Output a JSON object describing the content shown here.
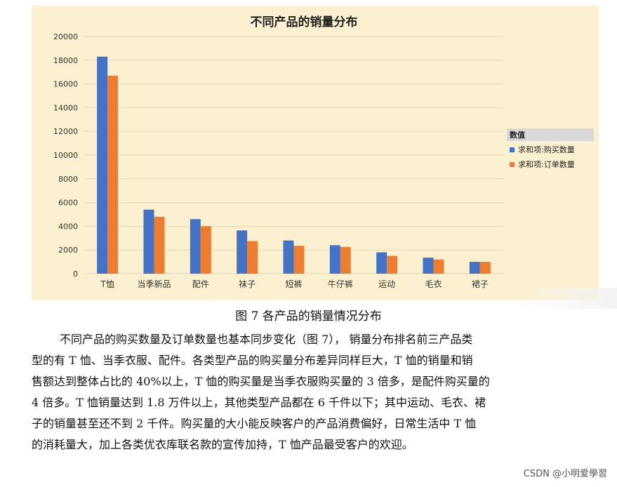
{
  "chart_data": {
    "type": "bar",
    "title": "不同产品的销量分布",
    "categories": [
      "T恤",
      "当季新品",
      "配件",
      "袜子",
      "短裤",
      "牛仔裤",
      "运动",
      "毛衣",
      "裙子"
    ],
    "series": [
      {
        "name": "求和项:购买数量",
        "color": "#4472c4",
        "values": [
          18300,
          5400,
          4600,
          3650,
          2800,
          2400,
          1800,
          1350,
          1000
        ]
      },
      {
        "name": "求和项:订单数量",
        "color": "#ed7d31",
        "values": [
          16700,
          4800,
          4000,
          2750,
          2350,
          2250,
          1500,
          1200,
          1000
        ]
      }
    ],
    "legend_title": "数值",
    "legend_position": "right",
    "yticks": [
      0,
      2000,
      4000,
      6000,
      8000,
      10000,
      12000,
      14000,
      16000,
      18000,
      20000
    ],
    "ylim": [
      0,
      20000
    ],
    "grid": true
  },
  "caption": "图 7 各产品的销量情况分布",
  "paragraph_lines": [
    "不同产品的购买数量及订单数量也基本同步变化（图 7），  销量分布排名前三产品类",
    "型的有 T 恤、当季衣服、配件。各类型产品的购买量分布差异同样巨大，T 恤的销量和销",
    "售额达到整体占比的 40%以上，T 恤的购买量是当季衣服购买量的 3 倍多，是配件购买量的",
    "4 倍多。T 恤销量达到 1.8 万件以上，其他类型产品都在 6 千件以下；其中运动、毛衣、裙",
    "子的销量甚至还不到 2 千件。购买量的大小能反映客户的产品消费偏好，日常生活中 T 恤",
    "的消耗量大，加上各类优衣库联名款的宣传加持，T 恤产品最受客户的欢迎。"
  ],
  "watermark": "CSDN @小明爱學習"
}
